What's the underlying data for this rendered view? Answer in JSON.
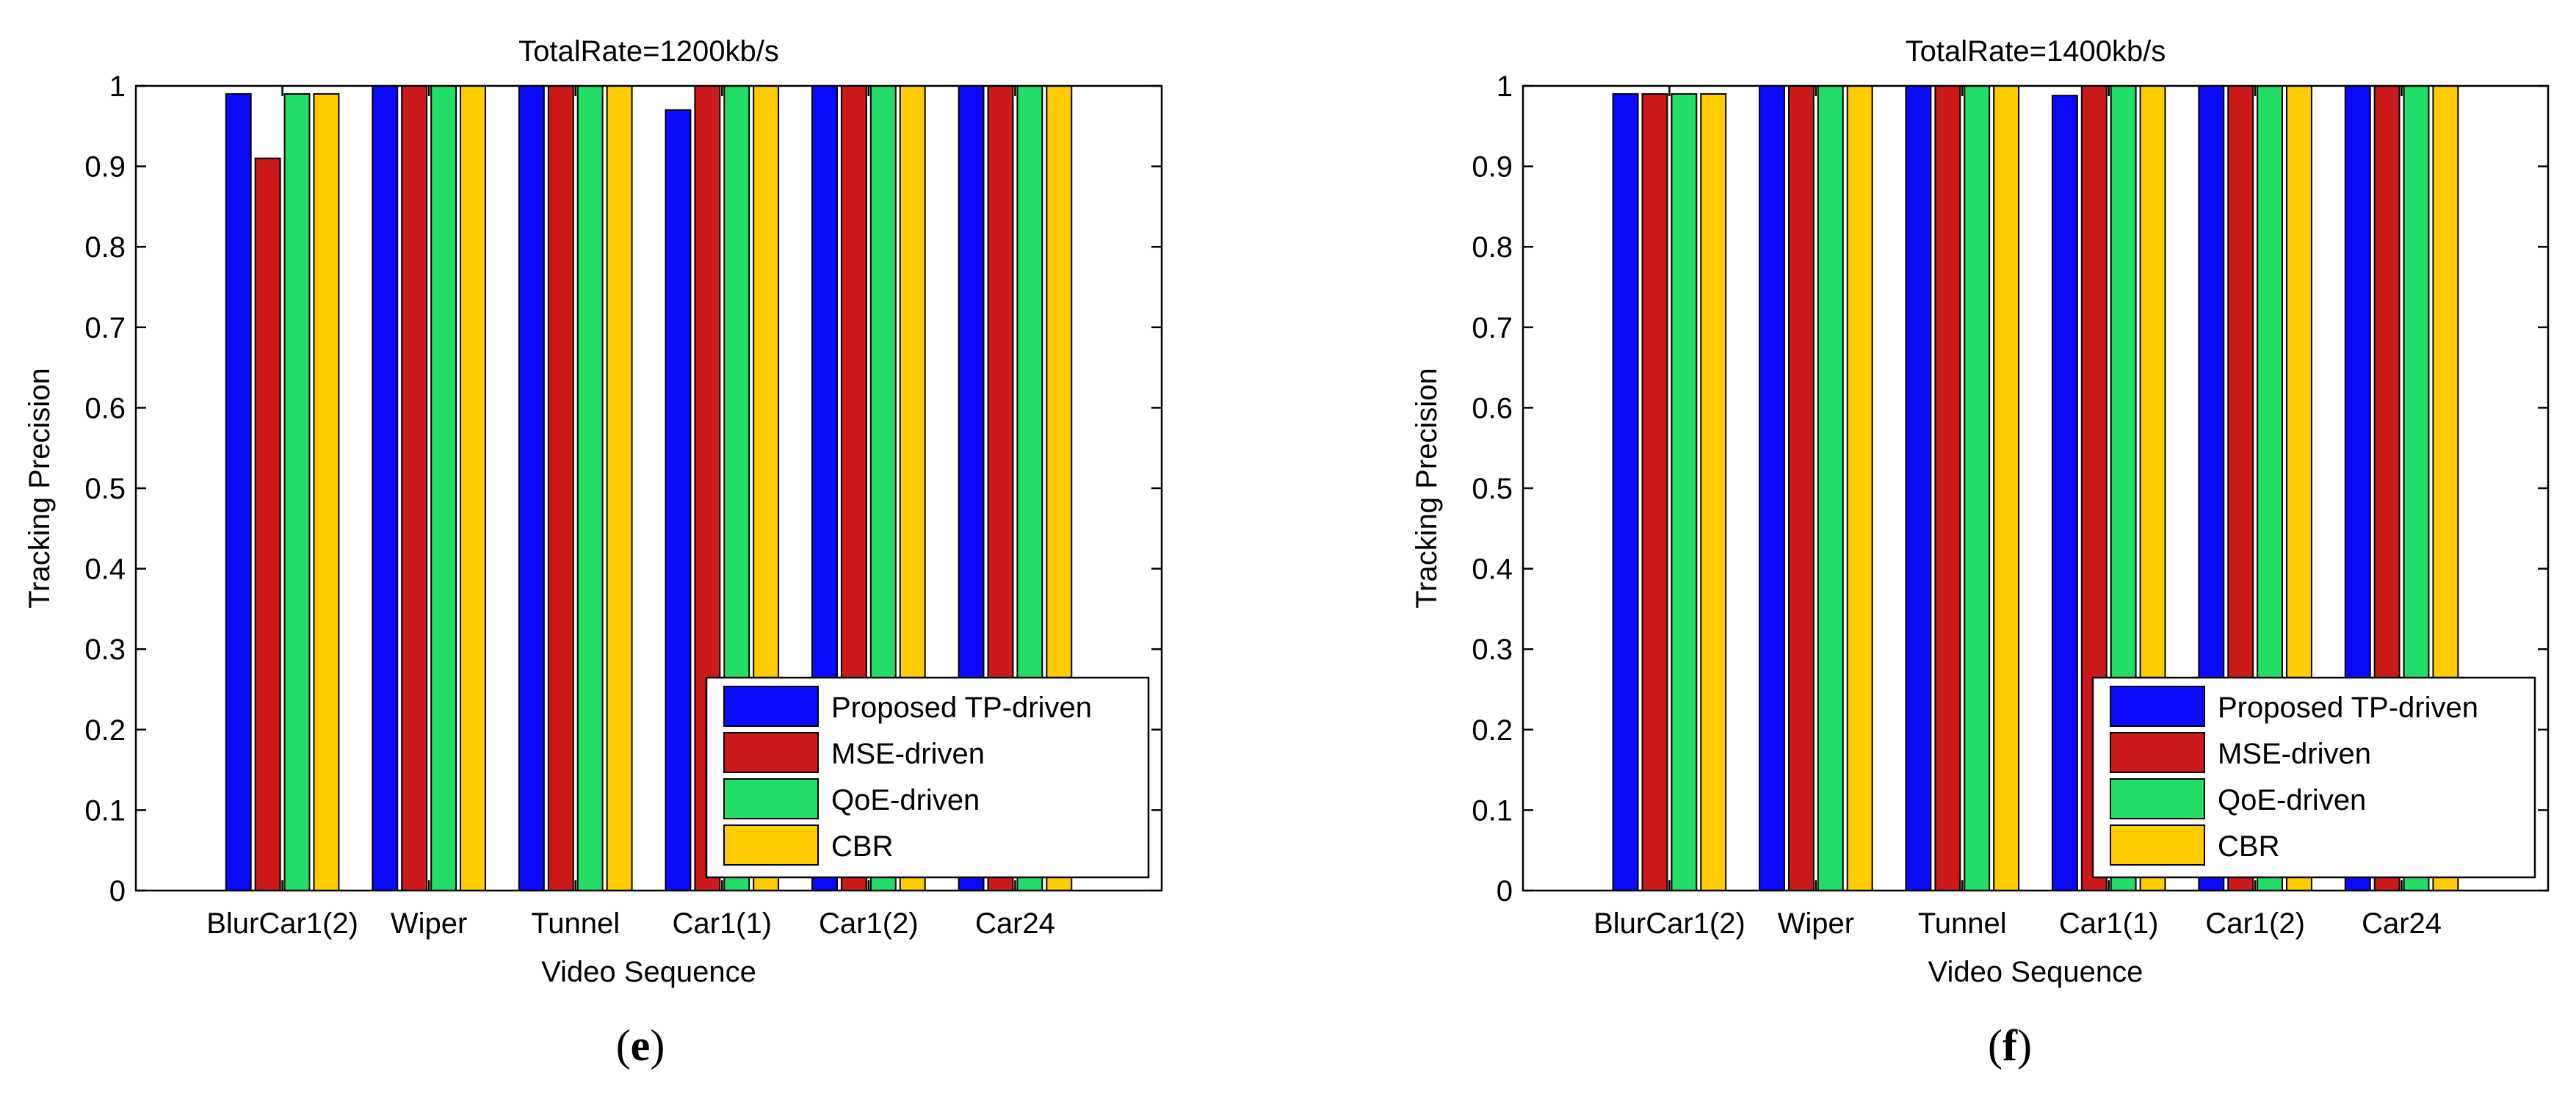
{
  "chart_data": [
    {
      "type": "bar",
      "panel_label": "e",
      "title": "TotalRate=1200kb/s",
      "xlabel": "Video Sequence",
      "ylabel": "Tracking Precision",
      "ylim": [
        0,
        1
      ],
      "yticks": [
        "0",
        "0.1",
        "0.2",
        "0.3",
        "0.4",
        "0.5",
        "0.6",
        "0.7",
        "0.8",
        "0.9",
        "1"
      ],
      "categories": [
        "BlurCar1(2)",
        "Wiper",
        "Tunnel",
        "Car1(1)",
        "Car1(2)",
        "Car24"
      ],
      "legend_position": "bottom-right",
      "series": [
        {
          "name": "Proposed TP-driven",
          "color": "#0a0aff",
          "values": [
            0.99,
            1.0,
            1.0,
            0.97,
            1.0,
            1.0
          ]
        },
        {
          "name": "MSE-driven",
          "color": "#cc1a1a",
          "values": [
            0.91,
            1.0,
            1.0,
            1.0,
            1.0,
            1.0
          ]
        },
        {
          "name": "QoE-driven",
          "color": "#22dd66",
          "values": [
            0.99,
            1.0,
            1.0,
            1.0,
            1.0,
            1.0
          ]
        },
        {
          "name": "CBR",
          "color": "#ffcc00",
          "values": [
            0.99,
            1.0,
            1.0,
            1.0,
            1.0,
            1.0
          ]
        }
      ]
    },
    {
      "type": "bar",
      "panel_label": "f",
      "title": "TotalRate=1400kb/s",
      "xlabel": "Video Sequence",
      "ylabel": "Tracking Precision",
      "ylim": [
        0,
        1
      ],
      "yticks": [
        "0",
        "0.1",
        "0.2",
        "0.3",
        "0.4",
        "0.5",
        "0.6",
        "0.7",
        "0.8",
        "0.9",
        "1"
      ],
      "categories": [
        "BlurCar1(2)",
        "Wiper",
        "Tunnel",
        "Car1(1)",
        "Car1(2)",
        "Car24"
      ],
      "legend_position": "bottom-right",
      "series": [
        {
          "name": "Proposed TP-driven",
          "color": "#0a0aff",
          "values": [
            0.99,
            1.0,
            1.0,
            0.988,
            1.0,
            1.0
          ]
        },
        {
          "name": "MSE-driven",
          "color": "#cc1a1a",
          "values": [
            0.99,
            1.0,
            1.0,
            1.0,
            1.0,
            1.0
          ]
        },
        {
          "name": "QoE-driven",
          "color": "#22dd66",
          "values": [
            0.99,
            1.0,
            1.0,
            1.0,
            1.0,
            1.0
          ]
        },
        {
          "name": "CBR",
          "color": "#ffcc00",
          "values": [
            0.99,
            1.0,
            1.0,
            1.0,
            1.0,
            1.0
          ]
        }
      ]
    }
  ],
  "captions": [
    "e",
    "f"
  ]
}
